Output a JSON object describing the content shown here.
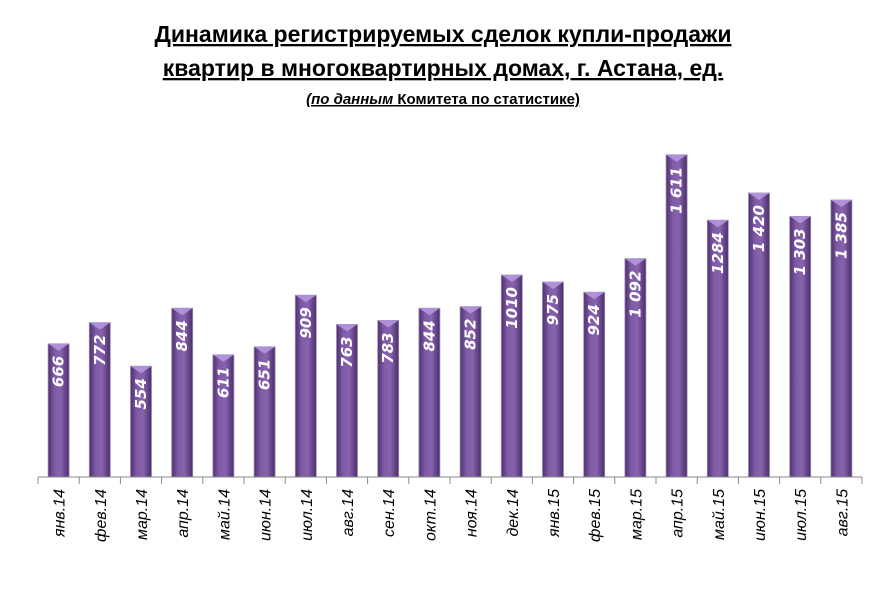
{
  "chart_data": {
    "type": "bar",
    "title_line1": "Динамика регистрируемых сделок купли-продажи",
    "title_line2": "квартир в многоквартирных домах, г. Астана, ед.",
    "subtitle_italic": "(по данным",
    "subtitle_rest": " Комитета по статистике)",
    "xlabel": "",
    "ylabel": "",
    "ylim": [
      0,
      1680
    ],
    "grid": false,
    "legend": "none",
    "bar_color": "#7b559f",
    "categories": [
      "янв.14",
      "фев.14",
      "мар.14",
      "апр.14",
      "май.14",
      "июн.14",
      "июл.14",
      "авг.14",
      "сен.14",
      "окт.14",
      "ноя.14",
      "дек.14",
      "янв.15",
      "фев.15",
      "мар.15",
      "апр.15",
      "май.15",
      "июн.15",
      "июл.15",
      "авг.15"
    ],
    "values": [
      666,
      772,
      554,
      844,
      611,
      651,
      909,
      763,
      783,
      844,
      852,
      1010,
      975,
      924,
      1092,
      1611,
      1284,
      1420,
      1303,
      1385
    ],
    "data_labels": [
      "666",
      "772",
      "554",
      "844",
      "611",
      "651",
      "909",
      "763",
      "783",
      "844",
      "852",
      "1010",
      "975",
      "924",
      "1 092",
      "1 611",
      "1284",
      "1 420",
      "1 303",
      "1 385"
    ]
  }
}
